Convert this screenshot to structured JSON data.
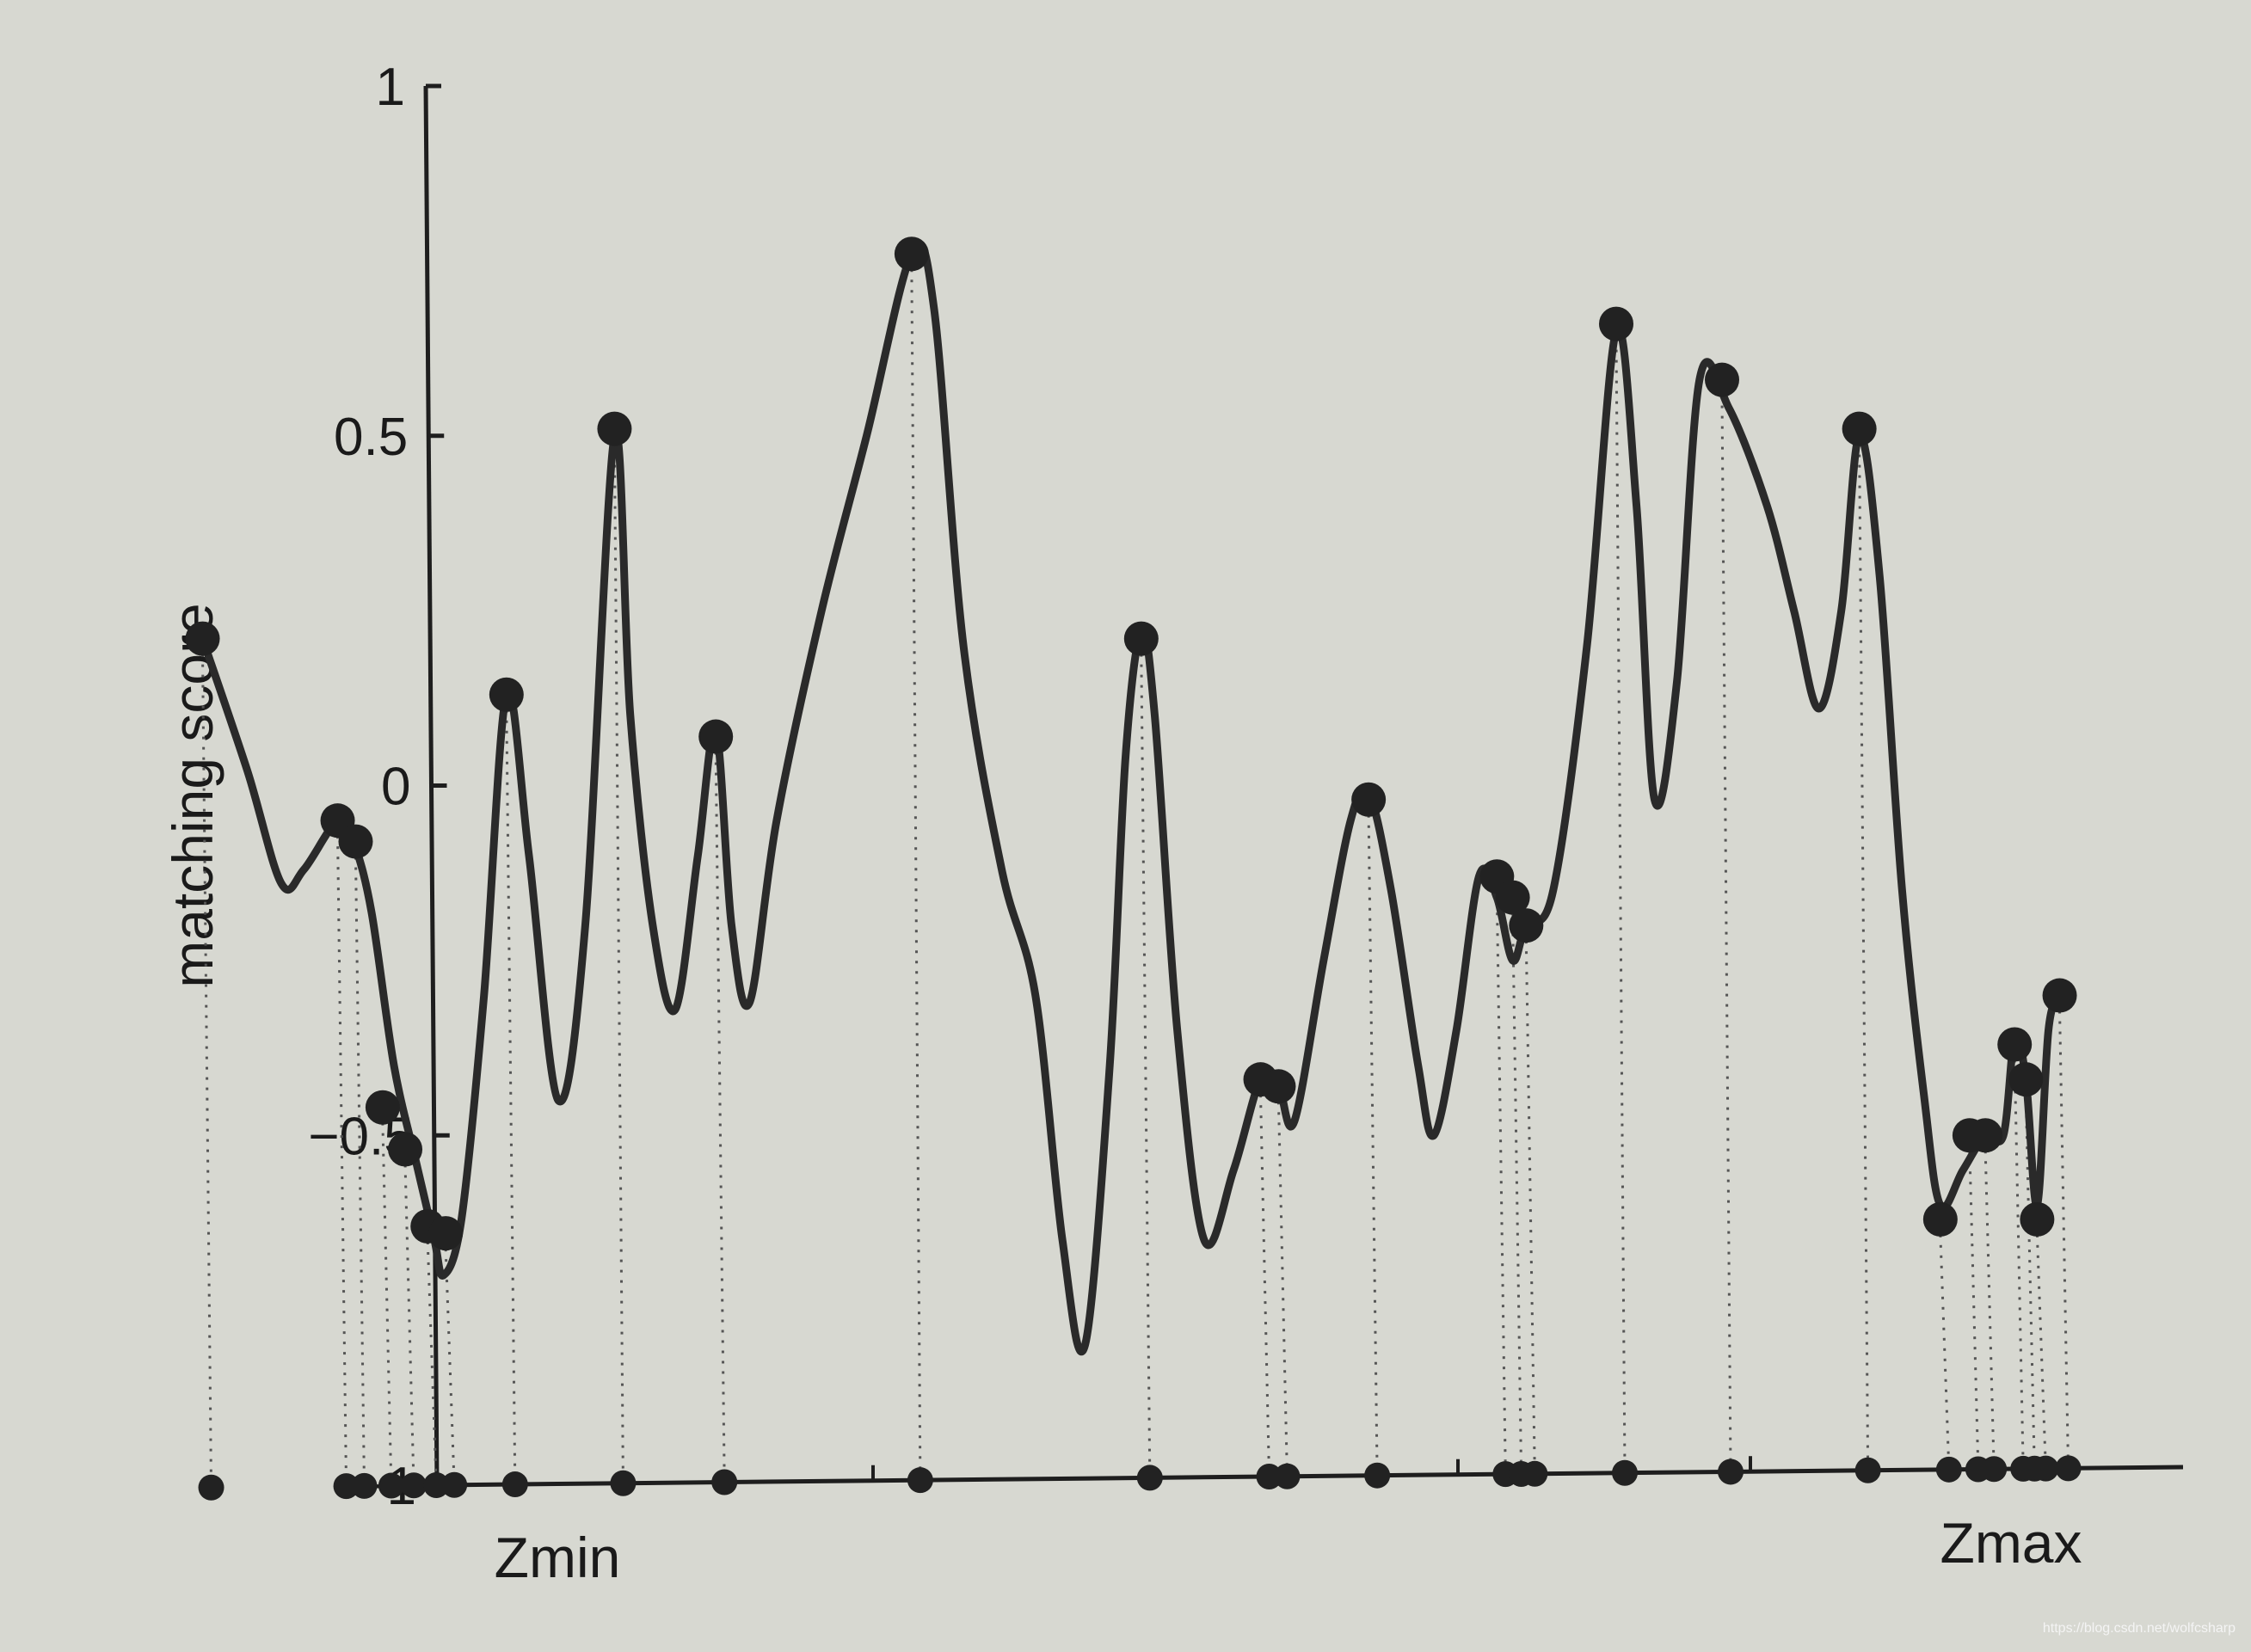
{
  "chart_data": {
    "type": "line",
    "ylabel": "matching score",
    "xlabel": "",
    "ylim": [
      -1,
      1
    ],
    "yticks": [
      {
        "value": 1,
        "label": "1"
      },
      {
        "value": 0.5,
        "label": "0.5"
      },
      {
        "value": 0,
        "label": "0"
      },
      {
        "value": -0.5,
        "label": "−0.5"
      },
      {
        "value": -1,
        "label": "−1"
      }
    ],
    "x_start_label": "Zmin",
    "x_end_label": "Zmax",
    "grid": false,
    "line_color": "#2a2a2a",
    "series": [
      {
        "curve": [
          [
            0.09,
            0.21
          ],
          [
            0.11,
            0.02
          ],
          [
            0.125,
            -0.14
          ],
          [
            0.135,
            -0.12
          ],
          [
            0.15,
            -0.05
          ],
          [
            0.157,
            -0.08
          ],
          [
            0.165,
            -0.18
          ],
          [
            0.175,
            -0.4
          ],
          [
            0.185,
            -0.54
          ],
          [
            0.193,
            -0.65
          ],
          [
            0.197,
            -0.7
          ],
          [
            0.205,
            -0.62
          ],
          [
            0.215,
            -0.3
          ],
          [
            0.225,
            0.13
          ],
          [
            0.235,
            -0.1
          ],
          [
            0.248,
            -0.45
          ],
          [
            0.26,
            -0.2
          ],
          [
            0.273,
            0.5
          ],
          [
            0.28,
            0.1
          ],
          [
            0.29,
            -0.2
          ],
          [
            0.3,
            -0.32
          ],
          [
            0.31,
            -0.1
          ],
          [
            0.318,
            0.08
          ],
          [
            0.325,
            -0.2
          ],
          [
            0.333,
            -0.31
          ],
          [
            0.345,
            -0.05
          ],
          [
            0.365,
            0.25
          ],
          [
            0.385,
            0.5
          ],
          [
            0.405,
            0.76
          ],
          [
            0.415,
            0.68
          ],
          [
            0.428,
            0.2
          ],
          [
            0.445,
            -0.12
          ],
          [
            0.46,
            -0.3
          ],
          [
            0.472,
            -0.65
          ],
          [
            0.482,
            -0.8
          ],
          [
            0.493,
            -0.4
          ],
          [
            0.5,
            0.04
          ],
          [
            0.507,
            0.22
          ],
          [
            0.513,
            0.1
          ],
          [
            0.523,
            -0.35
          ],
          [
            0.535,
            -0.65
          ],
          [
            0.548,
            -0.55
          ],
          [
            0.56,
            -0.42
          ],
          [
            0.568,
            -0.43
          ],
          [
            0.575,
            -0.48
          ],
          [
            0.588,
            -0.25
          ],
          [
            0.6,
            -0.05
          ],
          [
            0.608,
            -0.01
          ],
          [
            0.618,
            -0.15
          ],
          [
            0.63,
            -0.4
          ],
          [
            0.637,
            -0.5
          ],
          [
            0.647,
            -0.35
          ],
          [
            0.657,
            -0.13
          ],
          [
            0.665,
            -0.16
          ],
          [
            0.672,
            -0.25
          ],
          [
            0.678,
            -0.2
          ],
          [
            0.69,
            -0.15
          ],
          [
            0.705,
            0.2
          ],
          [
            0.718,
            0.65
          ],
          [
            0.727,
            0.4
          ],
          [
            0.735,
            -0.02
          ],
          [
            0.745,
            0.15
          ],
          [
            0.755,
            0.58
          ],
          [
            0.768,
            0.54
          ],
          [
            0.785,
            0.4
          ],
          [
            0.797,
            0.25
          ],
          [
            0.808,
            0.11
          ],
          [
            0.818,
            0.25
          ],
          [
            0.826,
            0.5
          ],
          [
            0.835,
            0.3
          ],
          [
            0.845,
            -0.15
          ],
          [
            0.855,
            -0.45
          ],
          [
            0.862,
            -0.6
          ],
          [
            0.872,
            -0.55
          ],
          [
            0.882,
            -0.5
          ],
          [
            0.89,
            -0.5
          ],
          [
            0.895,
            -0.36
          ],
          [
            0.9,
            -0.42
          ],
          [
            0.905,
            -0.6
          ],
          [
            0.91,
            -0.35
          ],
          [
            0.915,
            -0.3
          ]
        ],
        "markers": [
          [
            0.09,
            0.21
          ],
          [
            0.15,
            -0.05
          ],
          [
            0.158,
            -0.08
          ],
          [
            0.17,
            -0.46
          ],
          [
            0.18,
            -0.52
          ],
          [
            0.19,
            -0.63
          ],
          [
            0.198,
            -0.64
          ],
          [
            0.225,
            0.13
          ],
          [
            0.273,
            0.51
          ],
          [
            0.318,
            0.07
          ],
          [
            0.405,
            0.76
          ],
          [
            0.507,
            0.21
          ],
          [
            0.56,
            -0.42
          ],
          [
            0.568,
            -0.43
          ],
          [
            0.608,
            -0.02
          ],
          [
            0.665,
            -0.13
          ],
          [
            0.672,
            -0.16
          ],
          [
            0.678,
            -0.2
          ],
          [
            0.718,
            0.66
          ],
          [
            0.765,
            0.58
          ],
          [
            0.826,
            0.51
          ],
          [
            0.862,
            -0.62
          ],
          [
            0.875,
            -0.5
          ],
          [
            0.882,
            -0.5
          ],
          [
            0.895,
            -0.37
          ],
          [
            0.9,
            -0.42
          ],
          [
            0.905,
            -0.62
          ],
          [
            0.915,
            -0.3
          ]
        ]
      }
    ]
  },
  "watermark": "https://blog.csdn.net/wolfcsharp"
}
